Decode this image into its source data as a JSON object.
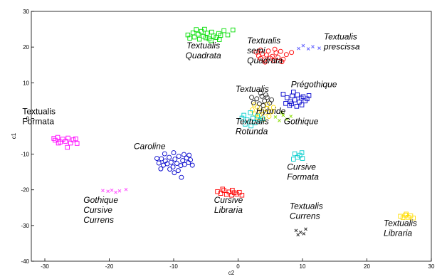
{
  "chart_data": {
    "type": "scatter",
    "title": "",
    "xlabel": "c2",
    "ylabel": "c1",
    "xlim": [
      -30,
      30
    ],
    "ylim": [
      -40,
      30
    ],
    "xticks": [
      "-30",
      "-20",
      "-10",
      "0",
      "10",
      "20",
      "30"
    ],
    "yticks": [
      "-40",
      "-30",
      "-20",
      "-10",
      "0",
      "10",
      "20",
      "30"
    ],
    "grid": false,
    "series": [
      {
        "color": "#00dd00",
        "marker": "square",
        "points": [
          [
            -7.5,
            22.5
          ],
          [
            -7,
            24
          ],
          [
            -6.8,
            22.8
          ],
          [
            -6.2,
            23.6
          ],
          [
            -6,
            22.2
          ],
          [
            -5.7,
            24.4
          ],
          [
            -5.4,
            23
          ],
          [
            -5,
            22.6
          ],
          [
            -4.8,
            23.9
          ],
          [
            -4.5,
            22.3
          ],
          [
            -4.1,
            24.2
          ],
          [
            -3.8,
            23.1
          ],
          [
            -3.4,
            22.7
          ],
          [
            -3,
            23.8
          ],
          [
            -2.7,
            23.3
          ],
          [
            -2.2,
            24.6
          ],
          [
            -1.6,
            23.4
          ],
          [
            -0.8,
            24.8
          ],
          [
            -5.2,
            25
          ],
          [
            -6.5,
            24.9
          ],
          [
            -4.2,
            21.8
          ],
          [
            -7.8,
            23.4
          ],
          [
            -2.9,
            22.1
          ]
        ]
      },
      {
        "color": "#ff0000",
        "marker": "circle",
        "points": [
          [
            2.8,
            18.6
          ],
          [
            3.2,
            17.5
          ],
          [
            3.5,
            16.8
          ],
          [
            3.8,
            18.1
          ],
          [
            4.1,
            16.4
          ],
          [
            4.4,
            17.8
          ],
          [
            4.7,
            18.9
          ],
          [
            5,
            16.9
          ],
          [
            5.3,
            17.4
          ],
          [
            5.6,
            16.2
          ],
          [
            5.9,
            18.4
          ],
          [
            6.2,
            17.1
          ],
          [
            6.6,
            18.8
          ],
          [
            7,
            16.6
          ],
          [
            7.5,
            17.9
          ],
          [
            8.3,
            18.5
          ],
          [
            4.2,
            15.8
          ],
          [
            5.7,
            19.4
          ],
          [
            3.5,
            19.2
          ],
          [
            6.8,
            15.9
          ]
        ]
      },
      {
        "color": "#6666ff",
        "marker": "x",
        "points": [
          [
            9.4,
            19.6
          ],
          [
            10.1,
            20.4
          ],
          [
            10.9,
            19.5
          ],
          [
            11.6,
            20.1
          ],
          [
            12.6,
            19.7
          ]
        ]
      },
      {
        "color": "#0000cc",
        "marker": "square",
        "points": [
          [
            7.6,
            5.8
          ],
          [
            8.1,
            4.7
          ],
          [
            8.4,
            6.3
          ],
          [
            8.8,
            5.2
          ],
          [
            9.2,
            6.6
          ],
          [
            9.5,
            4.6
          ],
          [
            9.8,
            5.7
          ],
          [
            10.1,
            6.1
          ],
          [
            10.4,
            4.9
          ],
          [
            10.7,
            5.5
          ],
          [
            8,
            3.6
          ],
          [
            7.4,
            4.2
          ],
          [
            8.6,
            7.4
          ],
          [
            9.9,
            3.8
          ],
          [
            7,
            6.8
          ],
          [
            11,
            6.4
          ],
          [
            9.1,
            3.4
          ],
          [
            8.3,
            4.1
          ]
        ]
      },
      {
        "color": "#ffdd00",
        "marker": "circle",
        "points": [
          [
            2.2,
            2.4
          ],
          [
            2.6,
            1.3
          ],
          [
            3,
            3.2
          ],
          [
            3.3,
            0.9
          ],
          [
            3.6,
            2.1
          ],
          [
            3.9,
            3.6
          ],
          [
            4.2,
            1.6
          ],
          [
            4.5,
            2.8
          ],
          [
            4.8,
            0.6
          ],
          [
            5.2,
            1.9
          ],
          [
            5.5,
            3.1
          ],
          [
            3.1,
            0.2
          ],
          [
            4,
            -0.2
          ],
          [
            2.5,
            3.8
          ],
          [
            4.6,
            3.9
          ]
        ]
      },
      {
        "color": "#222222",
        "marker": "circle",
        "points": [
          [
            2.4,
            4.4
          ],
          [
            2.9,
            5.5
          ],
          [
            3.3,
            4.1
          ],
          [
            3.7,
            6.2
          ],
          [
            4.1,
            4.9
          ],
          [
            4.5,
            5.9
          ],
          [
            4.9,
            4.3
          ],
          [
            3.5,
            7.1
          ],
          [
            3.9,
            3.6
          ],
          [
            4.3,
            6.6
          ],
          [
            5.2,
            5.2
          ],
          [
            2.1,
            5.9
          ]
        ]
      },
      {
        "color": "#00cccc",
        "marker": "square",
        "points": [
          [
            0.9,
            0.9
          ],
          [
            1.4,
            -0.4
          ],
          [
            1.9,
            1.6
          ],
          [
            2.3,
            0.1
          ],
          [
            2.6,
            -1.2
          ],
          [
            3,
            0.7
          ],
          [
            3.4,
            -0.6
          ],
          [
            1.1,
            -1.6
          ],
          [
            2,
            -2.1
          ],
          [
            3.8,
            -0.1
          ],
          [
            0.6,
            0.1
          ]
        ]
      },
      {
        "color": "#88dd00",
        "marker": "x",
        "points": [
          [
            5.8,
            0.4
          ],
          [
            6.4,
            -0.6
          ],
          [
            7,
            0.9
          ],
          [
            7.6,
            -0.2
          ],
          [
            8.2,
            0.6
          ],
          [
            6.8,
            1.6
          ]
        ]
      },
      {
        "color": "#ff00ff",
        "marker": "square",
        "points": [
          [
            -28.4,
            -6.1
          ],
          [
            -28,
            -5.3
          ],
          [
            -27.6,
            -6.6
          ],
          [
            -27.2,
            -5.8
          ],
          [
            -26.8,
            -6.4
          ],
          [
            -26.4,
            -5.5
          ],
          [
            -26,
            -6.9
          ],
          [
            -25.6,
            -6
          ],
          [
            -27.9,
            -6.9
          ],
          [
            -25.2,
            -5.7
          ],
          [
            -26.5,
            -8.1
          ],
          [
            -25,
            -7
          ],
          [
            -28.6,
            -5.6
          ]
        ]
      },
      {
        "color": "#0000cc",
        "marker": "circle",
        "points": [
          [
            -12.3,
            -12.5
          ],
          [
            -11.9,
            -11.3
          ],
          [
            -11.6,
            -13.1
          ],
          [
            -11.3,
            -11.9
          ],
          [
            -11,
            -12.7
          ],
          [
            -10.7,
            -10.9
          ],
          [
            -10.4,
            -12.3
          ],
          [
            -10.1,
            -13.6
          ],
          [
            -9.8,
            -11.4
          ],
          [
            -9.5,
            -12.6
          ],
          [
            -9.2,
            -10.6
          ],
          [
            -8.9,
            -13.2
          ],
          [
            -8.6,
            -11.8
          ],
          [
            -8.3,
            -12.9
          ],
          [
            -8,
            -11.1
          ],
          [
            -7.7,
            -12.4
          ],
          [
            -7.4,
            -11.6
          ],
          [
            -7.1,
            -13.1
          ],
          [
            -10.6,
            -14.2
          ],
          [
            -9.3,
            -14.6
          ],
          [
            -8.8,
            -16.5
          ],
          [
            -11.4,
            -9.9
          ],
          [
            -10,
            -9.6
          ],
          [
            -8.4,
            -10.1
          ],
          [
            -12.6,
            -11.2
          ],
          [
            -7.6,
            -10.3
          ],
          [
            -9.9,
            -15.2
          ],
          [
            -12,
            -14.1
          ]
        ]
      },
      {
        "color": "#ff55ff",
        "marker": "x",
        "points": [
          [
            -21,
            -20.2
          ],
          [
            -20.2,
            -20.4
          ],
          [
            -19.6,
            -20.1
          ],
          [
            -19,
            -20.7
          ],
          [
            -18.4,
            -20.3
          ],
          [
            -17.4,
            -19.9
          ]
        ]
      },
      {
        "color": "#ff0000",
        "marker": "square",
        "points": [
          [
            -3.2,
            -20.5
          ],
          [
            -2.7,
            -21
          ],
          [
            -2.2,
            -20.2
          ],
          [
            -1.8,
            -21.3
          ],
          [
            -1.4,
            -20.6
          ],
          [
            -1,
            -21.5
          ],
          [
            -0.6,
            -20.8
          ],
          [
            -0.2,
            -21.2
          ],
          [
            0.2,
            -20.7
          ],
          [
            0.6,
            -21.5
          ],
          [
            -2.4,
            -19.8
          ],
          [
            -0.9,
            -20.1
          ]
        ]
      },
      {
        "color": "#00cccc",
        "marker": "square",
        "points": [
          [
            8.8,
            -9.9
          ],
          [
            9.2,
            -10.9
          ],
          [
            9.6,
            -10.3
          ],
          [
            10,
            -11.2
          ],
          [
            8.6,
            -11.4
          ],
          [
            9.9,
            -9.6
          ]
        ]
      },
      {
        "color": "#333333",
        "marker": "x",
        "points": [
          [
            9,
            -31.4
          ],
          [
            9.3,
            -32.6
          ],
          [
            9.7,
            -31.9
          ],
          [
            10.2,
            -32.3
          ],
          [
            10.5,
            -31
          ]
        ]
      },
      {
        "color": "#ffdd00",
        "marker": "square",
        "points": [
          [
            25.2,
            -27.4
          ],
          [
            25.6,
            -27.8
          ],
          [
            26,
            -27.1
          ],
          [
            26.4,
            -27.7
          ],
          [
            26.8,
            -27.3
          ],
          [
            27.2,
            -27.9
          ],
          [
            26.1,
            -26.8
          ]
        ]
      }
    ],
    "annotations": [
      {
        "lines": [
          "Textualis",
          "Quadrata"
        ],
        "x": -5.4,
        "y": 19.6,
        "italic": true,
        "align": "middle"
      },
      {
        "lines": [
          "Textualis",
          "semi",
          "Quadrata"
        ],
        "x": 1.4,
        "y": 21,
        "italic": true,
        "align": "start"
      },
      {
        "lines": [
          "Textualis",
          "prescissa"
        ],
        "x": 13.3,
        "y": 22.1,
        "italic": true,
        "align": "start"
      },
      {
        "lines": [
          "Prégothique"
        ],
        "x": 8.2,
        "y": 8.8,
        "italic": true,
        "align": "start"
      },
      {
        "lines": [
          "Textualis"
        ],
        "x": -0.4,
        "y": 7.5,
        "italic": true,
        "align": "start"
      },
      {
        "lines": [
          "Hybride"
        ],
        "x": 2.8,
        "y": 1.3,
        "italic": true,
        "align": "start"
      },
      {
        "lines": [
          "Textualis",
          "Rotunda"
        ],
        "x": -0.4,
        "y": -1.6,
        "italic": true,
        "align": "start"
      },
      {
        "lines": [
          "Gothique"
        ],
        "x": 7.1,
        "y": -1.6,
        "italic": true,
        "align": "start"
      },
      {
        "lines": [
          "Textualis",
          "Formata"
        ],
        "x": -33.5,
        "y": 1.2,
        "italic": false,
        "align": "start"
      },
      {
        "lines": [
          "Caroline"
        ],
        "x": -16.2,
        "y": -8.6,
        "italic": true,
        "align": "start"
      },
      {
        "lines": [
          "Cursive",
          "Formata"
        ],
        "x": 7.6,
        "y": -14.4,
        "italic": true,
        "align": "start"
      },
      {
        "lines": [
          "Gothique",
          "Cursive",
          "Currens"
        ],
        "x": -24,
        "y": -23.6,
        "italic": true,
        "align": "start"
      },
      {
        "lines": [
          "Cursive",
          "Libraria"
        ],
        "x": -1.5,
        "y": -23.6,
        "italic": true,
        "align": "middle"
      },
      {
        "lines": [
          "Textualis",
          "Currens"
        ],
        "x": 8,
        "y": -25.3,
        "italic": true,
        "align": "start"
      },
      {
        "lines": [
          "Textualis",
          "Libraria"
        ],
        "x": 22.6,
        "y": -30.1,
        "italic": true,
        "align": "start"
      }
    ]
  }
}
